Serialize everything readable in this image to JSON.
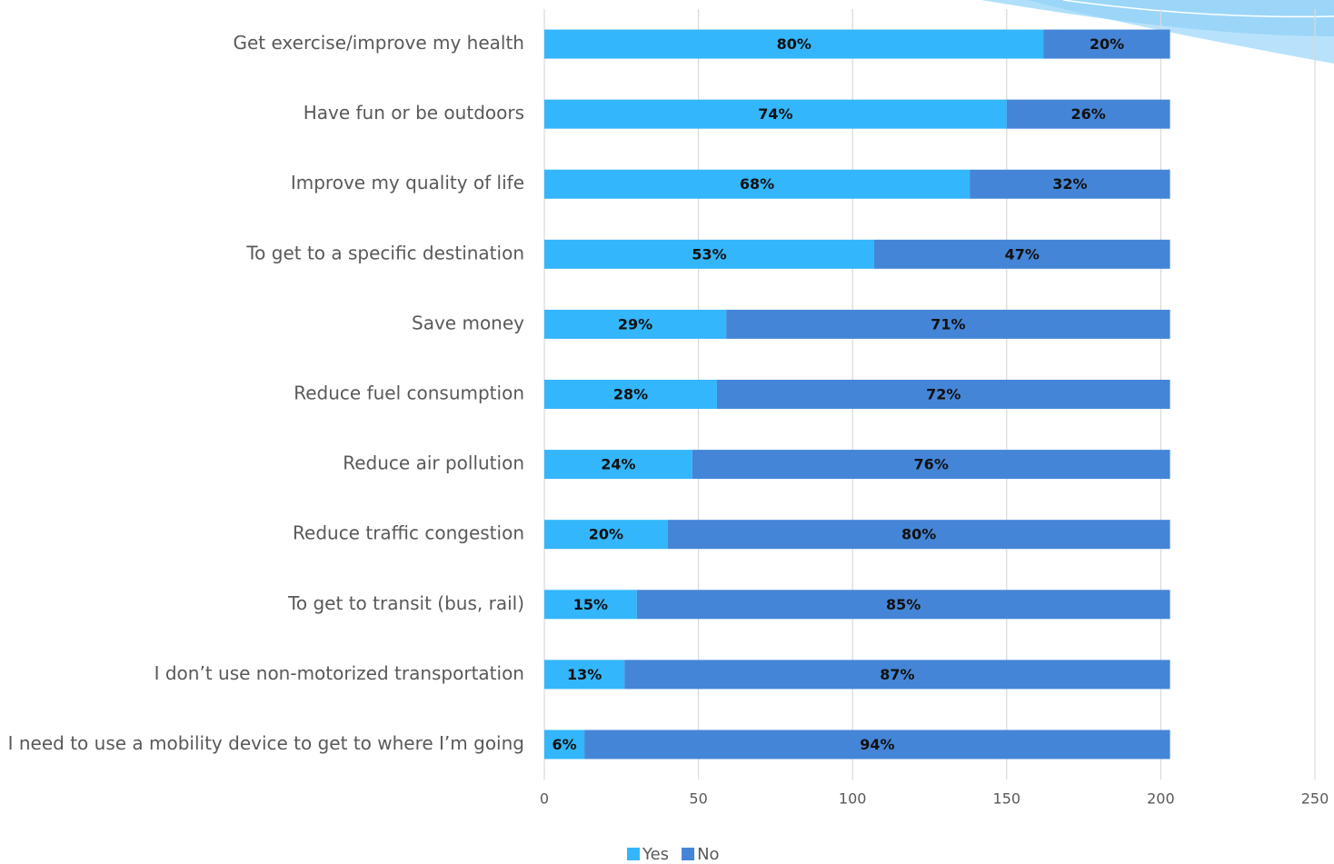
{
  "chart_data": {
    "type": "stacked-bar-horizontal",
    "categories": [
      "Get exercise/improve my health",
      "Have fun or be outdoors",
      "Improve my quality of life",
      "To get to a specific destination",
      "Save money",
      "Reduce fuel consumption",
      "Reduce air pollution",
      "Reduce traffic congestion",
      "To get to transit (bus, rail)",
      "I don’t use non-motorized transportation",
      "I need to use a mobility device to get to where I’m going"
    ],
    "series": [
      {
        "name": "Yes",
        "color": "#33b6fb",
        "values": [
          162,
          150,
          138,
          107,
          59,
          56,
          48,
          40,
          30,
          26,
          13
        ],
        "value_labels": [
          "80%",
          "74%",
          "68%",
          "53%",
          "29%",
          "28%",
          "24%",
          "20%",
          "15%",
          "13%",
          "6%"
        ]
      },
      {
        "name": "No",
        "color": "#4585d7",
        "values": [
          41,
          53,
          65,
          96,
          144,
          147,
          155,
          163,
          173,
          177,
          190
        ],
        "value_labels": [
          "20%",
          "26%",
          "32%",
          "47%",
          "71%",
          "72%",
          "76%",
          "80%",
          "85%",
          "87%",
          "94%"
        ]
      }
    ],
    "xlim": [
      0,
      250
    ],
    "xticks": [
      0,
      50,
      100,
      150,
      200,
      250
    ],
    "grid": true,
    "legend": "bottom"
  }
}
